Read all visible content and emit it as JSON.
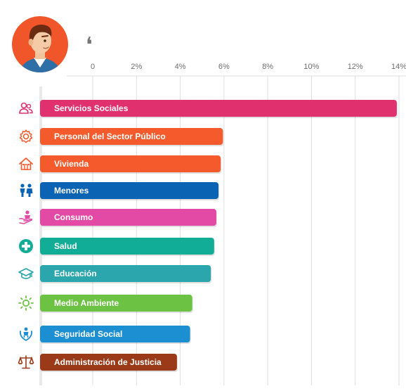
{
  "quote_glyph": "❛",
  "chart_data": {
    "type": "bar",
    "orientation": "horizontal",
    "xlim": [
      0,
      14
    ],
    "x_ticks": [
      "0",
      "2%",
      "4%",
      "6%",
      "8%",
      "10%",
      "12%",
      "14%"
    ],
    "x_tick_values": [
      0,
      2,
      4,
      6,
      8,
      10,
      12,
      14
    ],
    "grid": true,
    "categories": [
      "Servicios Sociales",
      "Personal del Sector Público",
      "Vivienda",
      "Menores",
      "Consumo",
      "Salud",
      "Educación",
      "Medio Ambiente",
      "Seguridad Social",
      "Administración de Justicia"
    ],
    "values": [
      13.9,
      5.95,
      5.85,
      5.75,
      5.65,
      5.55,
      5.4,
      4.55,
      4.45,
      3.85
    ],
    "colors": [
      "#e0306e",
      "#f55a2c",
      "#f55a2c",
      "#0b63b4",
      "#e34aa6",
      "#12ad96",
      "#2ba6ad",
      "#6cc243",
      "#1b8fd1",
      "#9a3a18"
    ],
    "icons": [
      "people-icon",
      "gear-icon",
      "house-icon",
      "children-icon",
      "hand-heart-icon",
      "medical-cross-icon",
      "graduation-cap-icon",
      "sun-icon",
      "family-shield-icon",
      "scales-icon"
    ]
  }
}
